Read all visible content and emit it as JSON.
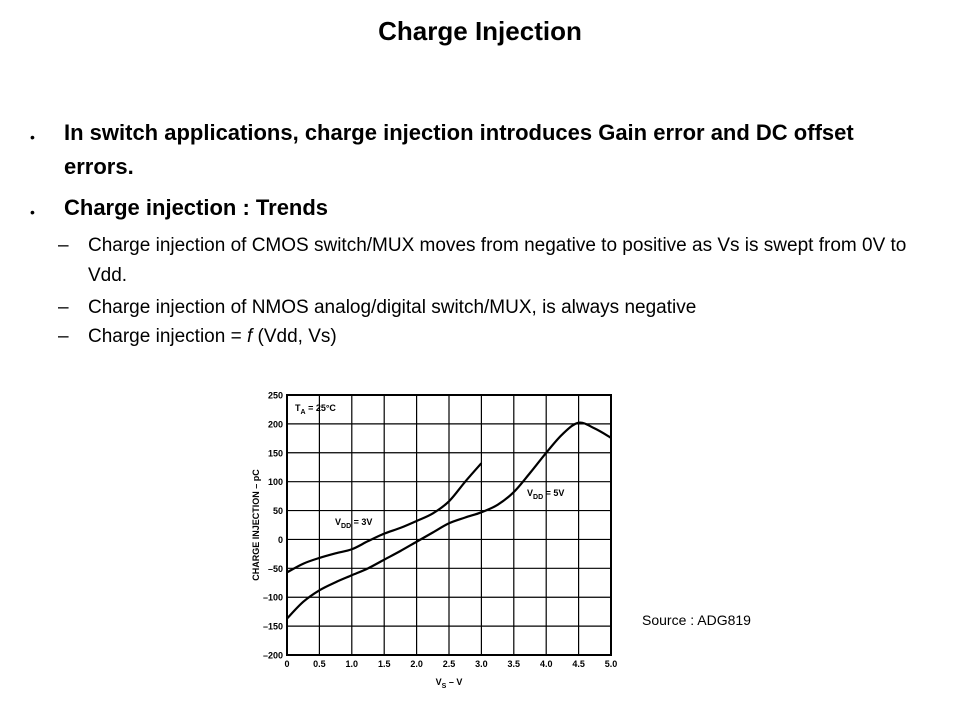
{
  "slide": {
    "title": "Charge Injection",
    "bullets": [
      {
        "text": "In switch applications, charge injection introduces Gain error and DC offset errors."
      },
      {
        "text": "Charge injection : Trends"
      }
    ],
    "sub_bullets": [
      {
        "text": "Charge injection of CMOS switch/MUX moves from negative to positive as Vs is swept from 0V to Vdd."
      },
      {
        "text": "Charge injection of NMOS analog/digital switch/MUX, is always negative"
      },
      {
        "prefix": "Charge injection = ",
        "italic": "f",
        "suffix": " (Vdd, Vs)"
      }
    ],
    "bullet_mark": "•",
    "sub_mark": "–",
    "source": "Source : ADG819"
  },
  "chart_data": {
    "type": "line",
    "title": "",
    "xlabel": "VS – V",
    "ylabel": "CHARGE INJECTION – pC",
    "xlim": [
      0,
      5.0
    ],
    "ylim": [
      -200,
      250
    ],
    "x_ticks": [
      "0",
      "0.5",
      "1.0",
      "1.5",
      "2.0",
      "2.5",
      "3.0",
      "3.5",
      "4.0",
      "4.5",
      "5.0"
    ],
    "y_ticks": [
      "250",
      "200",
      "150",
      "100",
      "50",
      "0",
      "–50",
      "–100",
      "–150",
      "–200"
    ],
    "grid": true,
    "annotation": "TA = 25°C",
    "series": [
      {
        "name": "VDD = 3V",
        "x": [
          0,
          0.25,
          0.5,
          0.75,
          1.0,
          1.25,
          1.5,
          1.75,
          2.0,
          2.25,
          2.5,
          2.75,
          3.0
        ],
        "y": [
          -57,
          -42,
          -32,
          -24,
          -17,
          -3,
          10,
          20,
          32,
          45,
          66,
          100,
          132
        ]
      },
      {
        "name": "VDD = 5V",
        "x": [
          0,
          0.25,
          0.5,
          0.75,
          1.0,
          1.25,
          1.5,
          1.75,
          2.0,
          2.25,
          2.5,
          2.75,
          3.0,
          3.25,
          3.5,
          3.75,
          4.0,
          4.25,
          4.5,
          4.75,
          5.0
        ],
        "y": [
          -137,
          -108,
          -88,
          -74,
          -62,
          -50,
          -35,
          -20,
          -4,
          12,
          28,
          38,
          47,
          60,
          82,
          115,
          150,
          182,
          202,
          192,
          176
        ]
      }
    ]
  }
}
